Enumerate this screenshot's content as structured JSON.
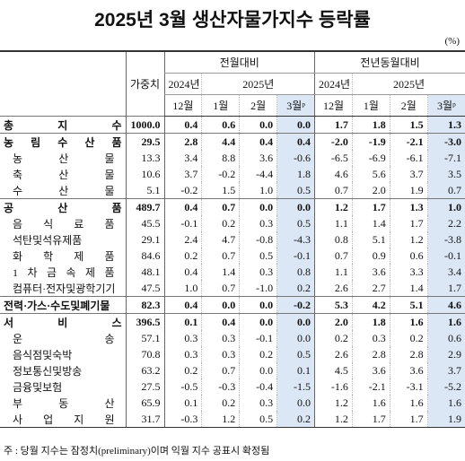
{
  "header": {
    "title": "2025년 3월 생산자물가지수 등락률",
    "unit": "(%)"
  },
  "table": {
    "weight_label": "가중치",
    "groups": [
      {
        "title": "전월대비",
        "years": [
          {
            "label": "2024년",
            "months": [
              "12월"
            ]
          },
          {
            "label": "2025년",
            "months": [
              "1월",
              "2월",
              "3월ᵖ"
            ]
          }
        ]
      },
      {
        "title": "전년동월대비",
        "years": [
          {
            "label": "2024년",
            "months": [
              "12월"
            ]
          },
          {
            "label": "2025년",
            "months": [
              "1월",
              "2월",
              "3월ᵖ"
            ]
          }
        ]
      }
    ],
    "sections": [
      {
        "name": "총 지 수",
        "weight": "1000.0",
        "values": [
          "0.4",
          "0.6",
          "0.0",
          "0.0",
          "1.7",
          "1.8",
          "1.5",
          "1.3"
        ],
        "items": []
      },
      {
        "name": "농 림 수 산 품",
        "weight": "29.5",
        "values": [
          "2.8",
          "4.4",
          "0.4",
          "0.4",
          "-2.0",
          "-1.9",
          "-2.1",
          "-3.0"
        ],
        "items": [
          {
            "name": "농 산 물",
            "weight": "13.3",
            "values": [
              "3.4",
              "8.8",
              "3.6",
              "-0.6",
              "-6.5",
              "-6.9",
              "-6.1",
              "-7.1"
            ]
          },
          {
            "name": "축 산 물",
            "weight": "10.6",
            "values": [
              "3.7",
              "-0.2",
              "-4.4",
              "1.8",
              "4.6",
              "5.6",
              "3.7",
              "3.5"
            ]
          },
          {
            "name": "수 산 물",
            "weight": "5.1",
            "values": [
              "-0.2",
              "1.5",
              "1.0",
              "0.5",
              "0.7",
              "2.0",
              "1.9",
              "0.7"
            ]
          }
        ]
      },
      {
        "name": "공 산 품",
        "weight": "489.7",
        "values": [
          "0.4",
          "0.7",
          "0.0",
          "0.0",
          "1.2",
          "1.7",
          "1.3",
          "1.0"
        ],
        "items": [
          {
            "name": "음 식 료 품",
            "weight": "45.5",
            "values": [
              "-0.1",
              "0.2",
              "0.3",
              "0.5",
              "1.1",
              "1.4",
              "1.7",
              "2.2"
            ]
          },
          {
            "name": "석탄및석유제품",
            "weight": "29.1",
            "values": [
              "2.4",
              "4.7",
              "-0.8",
              "-4.3",
              "0.8",
              "5.1",
              "1.2",
              "-3.8"
            ]
          },
          {
            "name": "화 학 제 품",
            "weight": "84.6",
            "values": [
              "0.2",
              "0.7",
              "0.5",
              "-0.1",
              "0.7",
              "0.9",
              "0.6",
              "-0.1"
            ]
          },
          {
            "name": "1 차 금 속 제 품",
            "weight": "48.1",
            "values": [
              "0.4",
              "1.4",
              "0.3",
              "0.8",
              "1.1",
              "3.6",
              "3.3",
              "3.4"
            ]
          },
          {
            "name": "컴퓨터·전자및광학기기",
            "weight": "47.5",
            "values": [
              "1.0",
              "0.7",
              "-1.0",
              "0.2",
              "2.6",
              "2.7",
              "1.4",
              "1.7"
            ]
          }
        ]
      },
      {
        "name": "전력·가스·수도및폐기물",
        "weight": "82.3",
        "values": [
          "0.4",
          "0.0",
          "0.0",
          "-0.2",
          "5.3",
          "4.2",
          "5.1",
          "4.6"
        ],
        "items": []
      },
      {
        "name": "서 비 스",
        "weight": "396.5",
        "values": [
          "0.1",
          "0.4",
          "0.0",
          "0.0",
          "2.0",
          "1.8",
          "1.6",
          "1.6"
        ],
        "items": [
          {
            "name": "운 송",
            "weight": "57.1",
            "values": [
              "0.3",
              "0.3",
              "-0.1",
              "0.0",
              "0.2",
              "0.3",
              "0.2",
              "0.6"
            ]
          },
          {
            "name": "음식점및숙박",
            "weight": "70.8",
            "values": [
              "0.3",
              "0.3",
              "0.2",
              "0.5",
              "2.6",
              "2.8",
              "2.8",
              "2.9"
            ]
          },
          {
            "name": "정보통신및방송",
            "weight": "63.2",
            "values": [
              "0.2",
              "0.7",
              "0.0",
              "0.1",
              "4.5",
              "3.6",
              "3.6",
              "3.7"
            ]
          },
          {
            "name": "금융및보험",
            "weight": "27.5",
            "values": [
              "-0.5",
              "-0.3",
              "-0.4",
              "-1.5",
              "-1.6",
              "-2.1",
              "-3.1",
              "-5.2"
            ]
          },
          {
            "name": "부 동 산",
            "weight": "65.9",
            "values": [
              "0.1",
              "0.2",
              "0.3",
              "0.0",
              "1.2",
              "1.6",
              "1.6",
              "1.6"
            ]
          },
          {
            "name": "사 업 지 원",
            "weight": "31.7",
            "values": [
              "-0.3",
              "1.2",
              "0.5",
              "0.2",
              "1.2",
              "1.7",
              "1.7",
              "1.9"
            ]
          }
        ]
      }
    ]
  },
  "note": "주 : 당월 지수는 잠정치(preliminary)이며 익월 지수 공표시 확정됨"
}
